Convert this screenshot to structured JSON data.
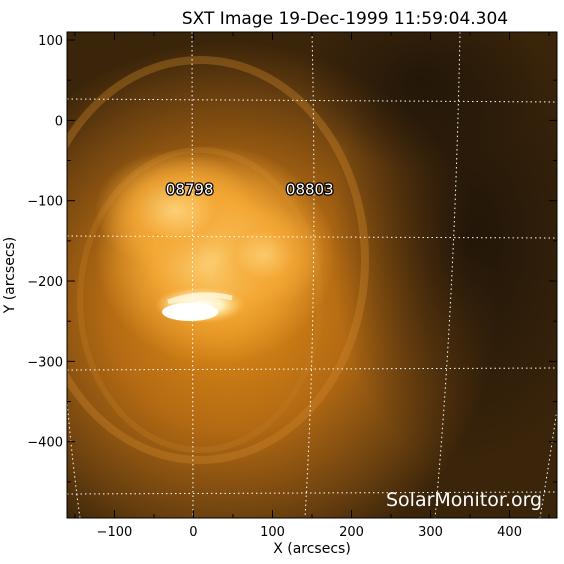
{
  "title": "SXT Image 19-Dec-1999 11:59:04.304",
  "x_axis": {
    "label": "X (arcsecs)",
    "range": [
      -160,
      460
    ],
    "ticks": [
      -100,
      0,
      100,
      200,
      300,
      400
    ],
    "tick_labels": [
      "−100",
      "0",
      "100",
      "200",
      "300",
      "400"
    ]
  },
  "y_axis": {
    "label": "Y (arcsecs)",
    "range": [
      -495,
      110
    ],
    "ticks": [
      0,
      -100,
      -200,
      -300,
      -400
    ],
    "tick_labels": [
      "0",
      "−100",
      "−200",
      "−300",
      "−400"
    ],
    "top_tick_label": "100"
  },
  "active_regions": [
    {
      "label": "08798",
      "x": -35,
      "y": -85
    },
    {
      "label": "08803",
      "x": 117,
      "y": -85
    }
  ],
  "watermark": "SolarMonitor.org",
  "colors": {
    "background": "#ffffff",
    "image_dark": "#2a1a08",
    "image_bright": "#fff4d8",
    "grid": "#ffffff"
  }
}
